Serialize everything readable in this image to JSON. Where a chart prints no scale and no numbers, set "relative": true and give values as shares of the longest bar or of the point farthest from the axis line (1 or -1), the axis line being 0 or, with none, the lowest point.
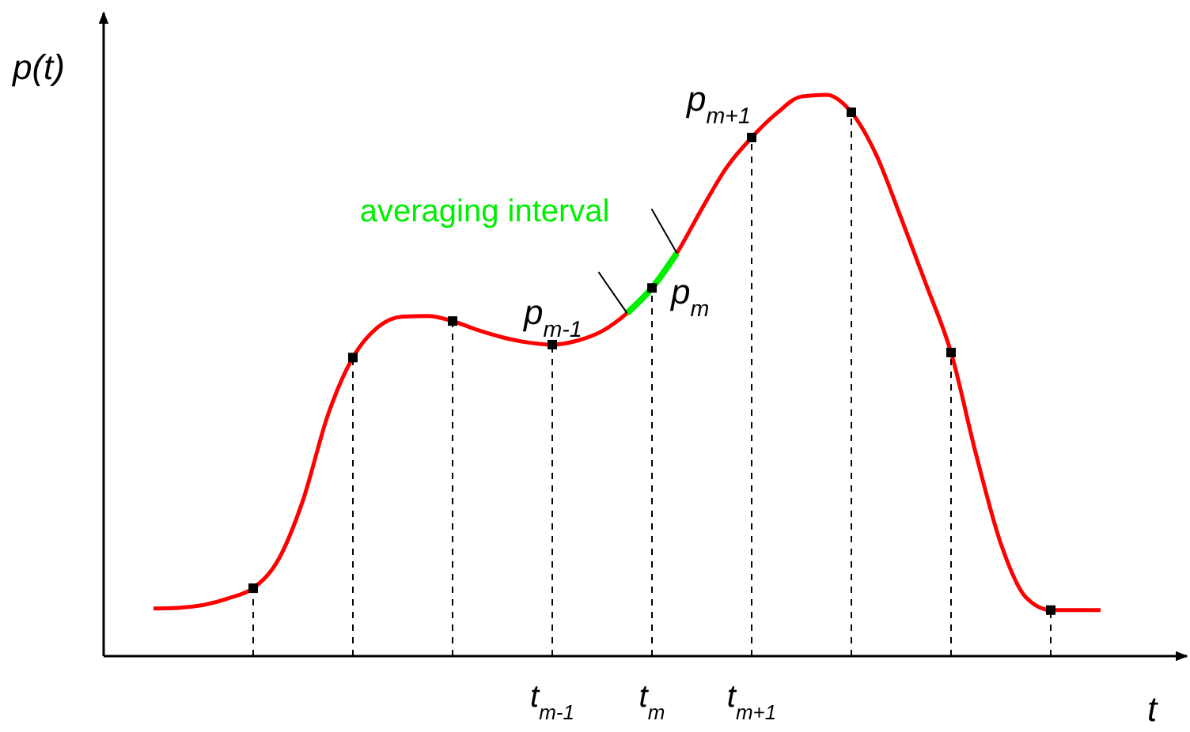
{
  "chart_data": {
    "type": "line",
    "relative": true,
    "xlabel": "t",
    "ylabel": "p(t)",
    "tick_labels": "x",
    "categories": [
      null,
      null,
      null,
      null,
      null,
      null,
      null,
      null,
      null,
      null,
      null,
      null,
      null,
      null,
      null,
      null,
      "t$_{m-1}$",
      null,
      null,
      null,
      "t$_{m}$",
      null,
      null,
      null,
      "t$_{m+1}$",
      null,
      null,
      null,
      null,
      null,
      null,
      null,
      null,
      null,
      null,
      null,
      null,
      null,
      null
    ],
    "series": [
      {
        "color": "#ff0000",
        "values": [
          0.085,
          0.086,
          0.091,
          0.103,
          0.121,
          0.171,
          0.278,
          0.43,
          0.532,
          0.586,
          0.605,
          0.606,
          0.597,
          0.581,
          0.568,
          0.559,
          0.555,
          0.562,
          0.579,
          0.611,
          0.656,
          0.718,
          0.797,
          0.871,
          0.924,
          0.967,
          0.997,
          1,
          0.969,
          0.893,
          0.78,
          0.662,
          0.541,
          0.36,
          0.2,
          0.105,
          0.082,
          0.082,
          0.082
        ]
      },
      {
        "name": "averaging interval",
        "color": "#00ee00",
        "values": [
          null,
          null,
          null,
          null,
          null,
          null,
          null,
          null,
          null,
          null,
          null,
          null,
          null,
          null,
          null,
          null,
          null,
          null,
          null,
          0.611,
          0.656,
          0.718,
          null,
          null,
          null,
          null,
          null,
          null,
          null,
          null,
          null,
          null,
          null,
          null,
          null,
          null,
          null,
          null,
          null
        ]
      },
      {
        "type": "lollipop",
        "color": "#000000",
        "marker": "square",
        "line_style": "dashed",
        "values": [
          null,
          null,
          null,
          null,
          0.121,
          null,
          null,
          null,
          0.532,
          null,
          null,
          null,
          0.597,
          null,
          null,
          null,
          0.555,
          null,
          null,
          null,
          0.656,
          null,
          null,
          null,
          0.924,
          null,
          null,
          null,
          0.969,
          null,
          null,
          null,
          0.541,
          null,
          null,
          null,
          0.082,
          null,
          null
        ]
      }
    ],
    "annotations": [
      {
        "text": "p$_{m-1}$",
        "x": "t$_{m-1}$",
        "y": 0.555
      },
      {
        "text": "p$_{m}$",
        "x": "t$_{m}$",
        "y": 0.656
      },
      {
        "text": "p$_{m+1}$",
        "x": "t$_{m+1}$",
        "y": 0.924
      }
    ]
  }
}
